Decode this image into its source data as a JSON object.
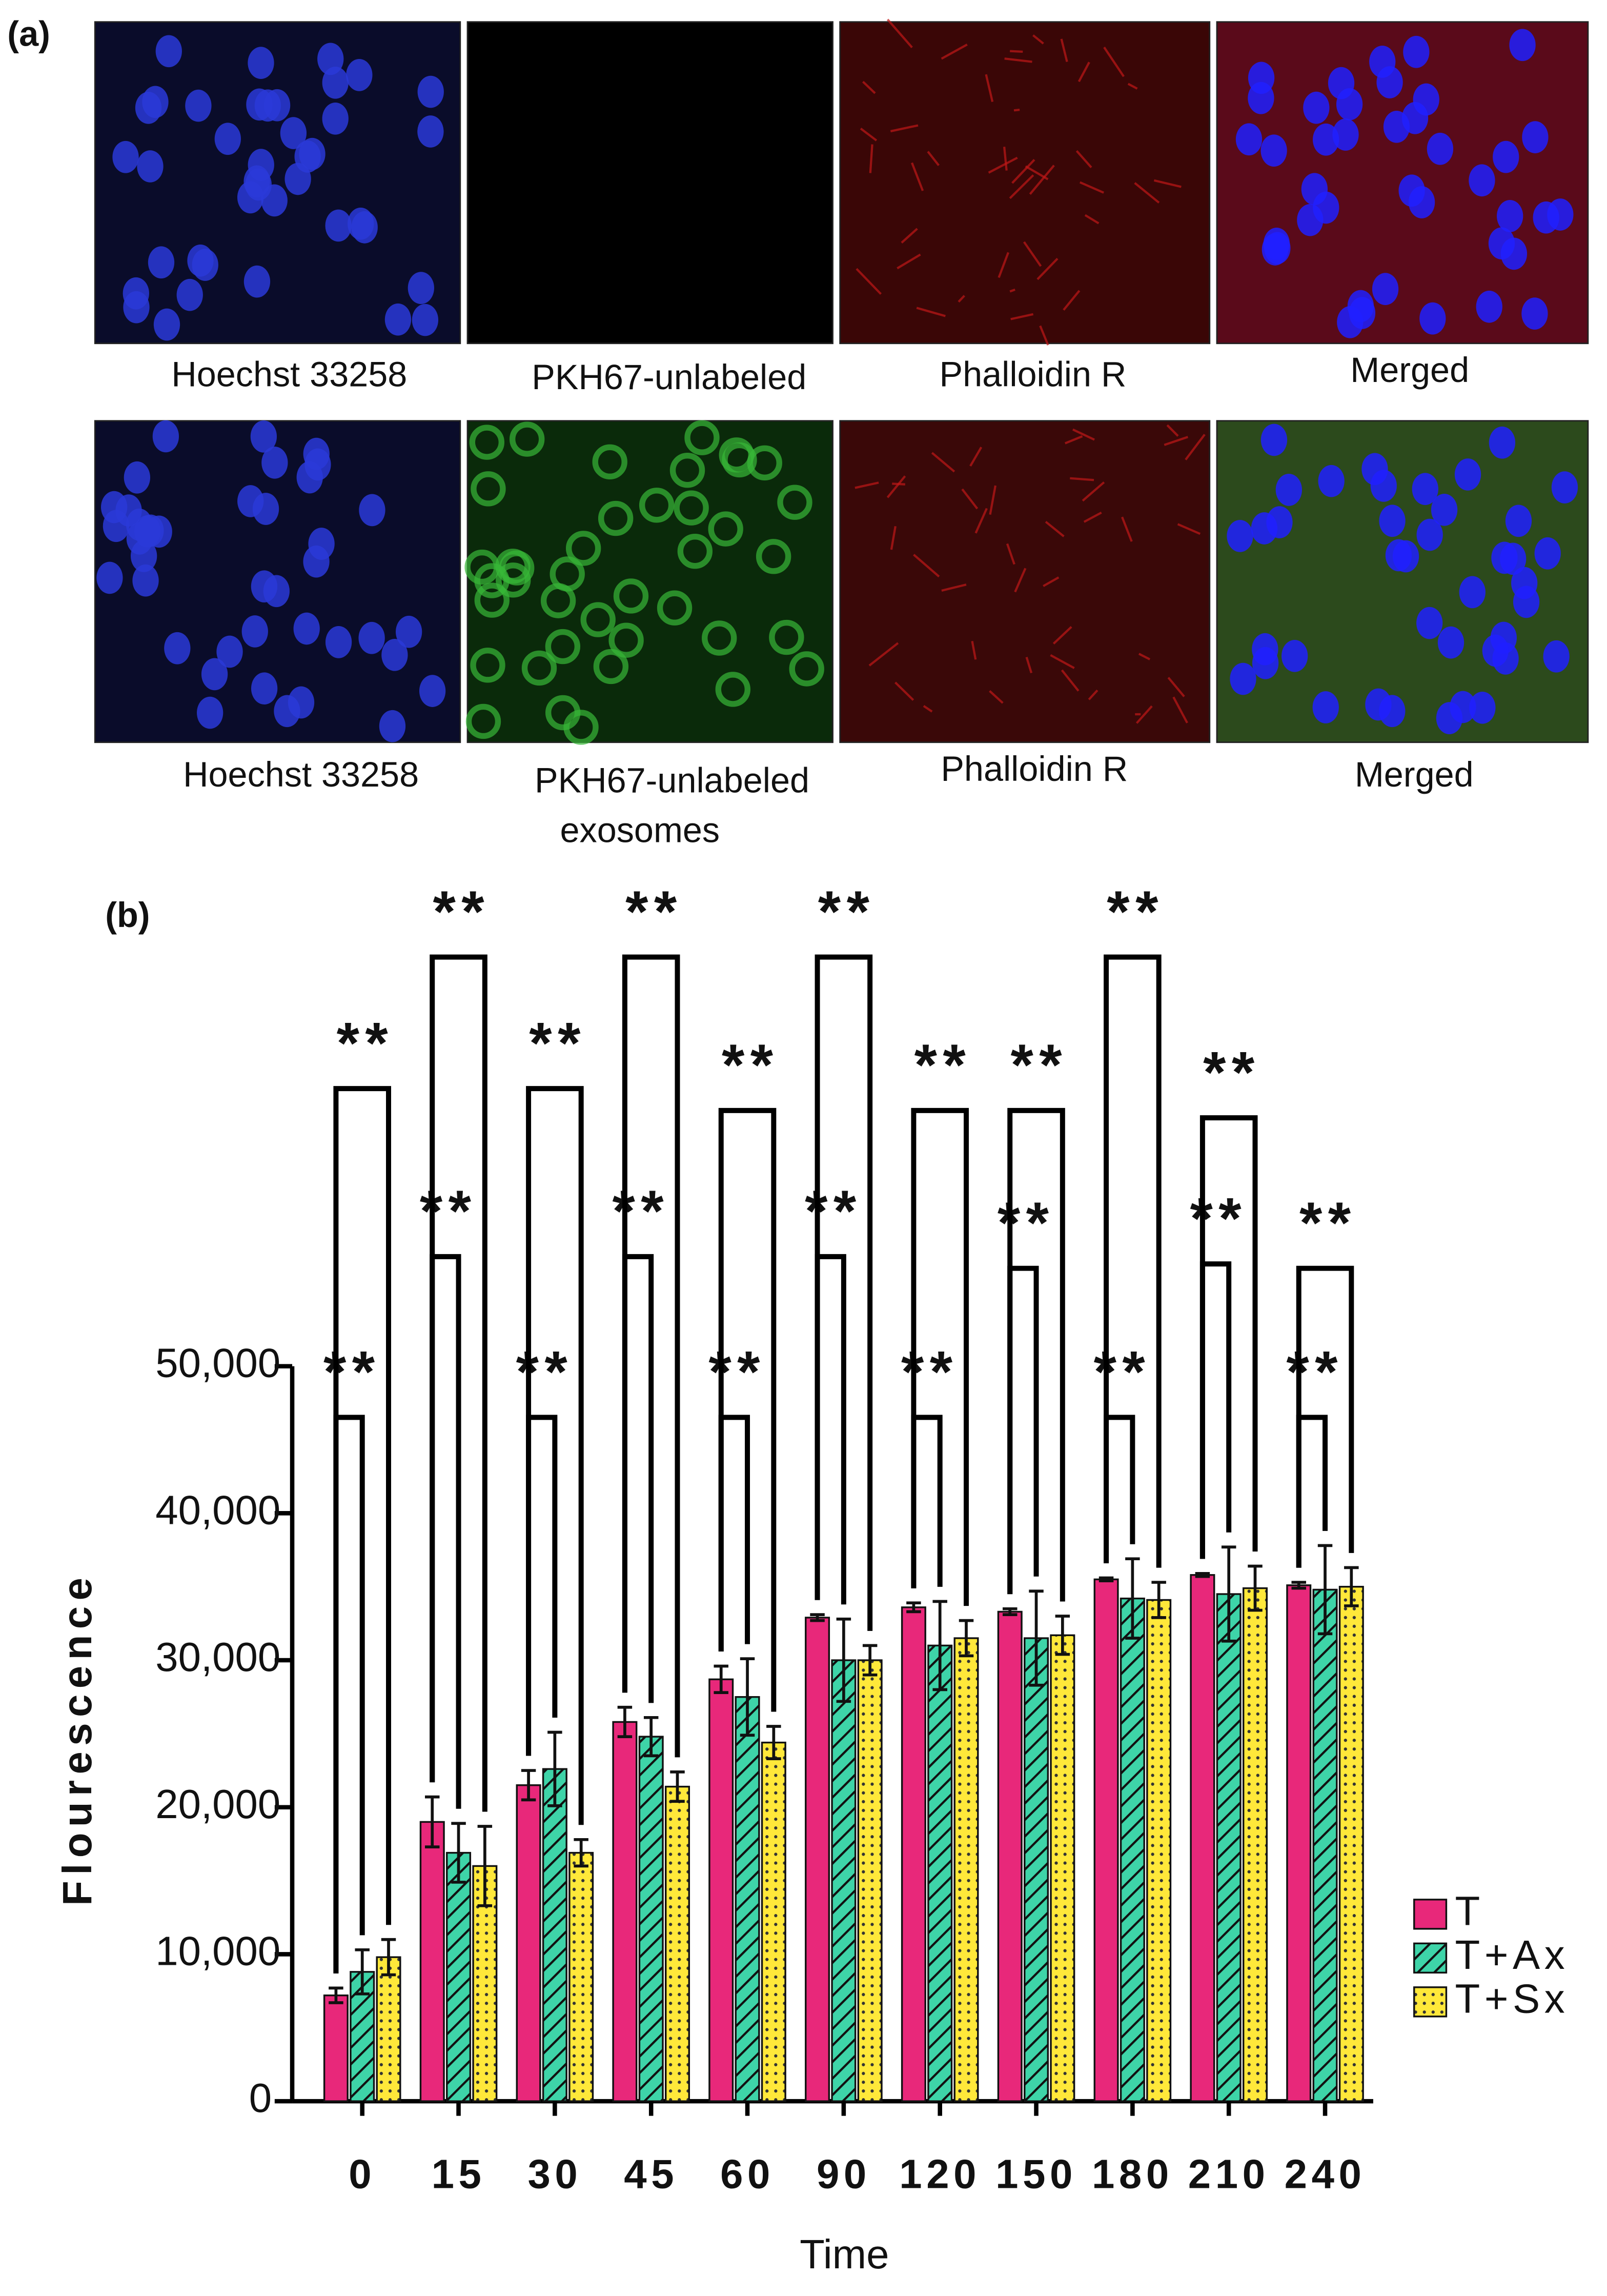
{
  "panel_a": {
    "label": "(a)",
    "row_1": [
      "Hoechst 33258",
      "PKH67-unlabeled",
      "Phalloidin R",
      "Merged"
    ],
    "row_2": [
      "Hoechst 33258",
      "PKH67-unlabeled",
      "exosomes",
      "Phalloidin R",
      "Merged"
    ]
  },
  "chart_data": {
    "type": "bar",
    "panel_label": "(b)",
    "x_label": "Time",
    "y_label": "Flourescence",
    "categories": [
      "0",
      "15",
      "30",
      "45",
      "60",
      "90",
      "120",
      "150",
      "180",
      "210",
      "240"
    ],
    "series": [
      {
        "name": "T",
        "color": "#e8287a",
        "pattern": "solid",
        "values": [
          7200,
          19000,
          21500,
          25800,
          28700,
          32900,
          33600,
          33300,
          35500,
          35800,
          35100
        ],
        "errors": [
          500,
          1700,
          1000,
          1000,
          900,
          200,
          300,
          200,
          100,
          100,
          200
        ]
      },
      {
        "name": "T+Ax",
        "color": "#3ed4a8",
        "pattern": "hatch",
        "values": [
          8800,
          16900,
          22600,
          24800,
          27500,
          30000,
          31000,
          31500,
          34200,
          34500,
          34800
        ],
        "errors": [
          1500,
          2000,
          2500,
          1300,
          2600,
          2800,
          3000,
          3200,
          2700,
          3200,
          3000
        ]
      },
      {
        "name": "T+Sx",
        "color": "#ffe83a",
        "pattern": "dots",
        "values": [
          9800,
          16000,
          16900,
          21400,
          24400,
          30000,
          31500,
          31700,
          34100,
          34900,
          35000
        ],
        "errors": [
          1200,
          2700,
          900,
          1000,
          1100,
          1000,
          1200,
          1300,
          1200,
          1500,
          1300
        ]
      }
    ],
    "ylim": [
      0,
      50000
    ],
    "yticks": [
      0,
      {
        "value": 10000,
        "label": "10,000"
      },
      {
        "value": 20000,
        "label": "20,000"
      },
      {
        "value": 30000,
        "label": "30,000"
      },
      {
        "value": 40000,
        "label": "40,000"
      },
      {
        "value": 50000,
        "label": "50,000"
      }
    ],
    "significance_labels": [
      "**",
      "**",
      "**",
      "**",
      "**",
      "**",
      "**",
      "**",
      "**",
      "**",
      "**",
      "**",
      "**",
      "**",
      "**",
      "**",
      "**",
      "**",
      "**",
      "**",
      "**",
      "**"
    ],
    "legend": "right"
  }
}
